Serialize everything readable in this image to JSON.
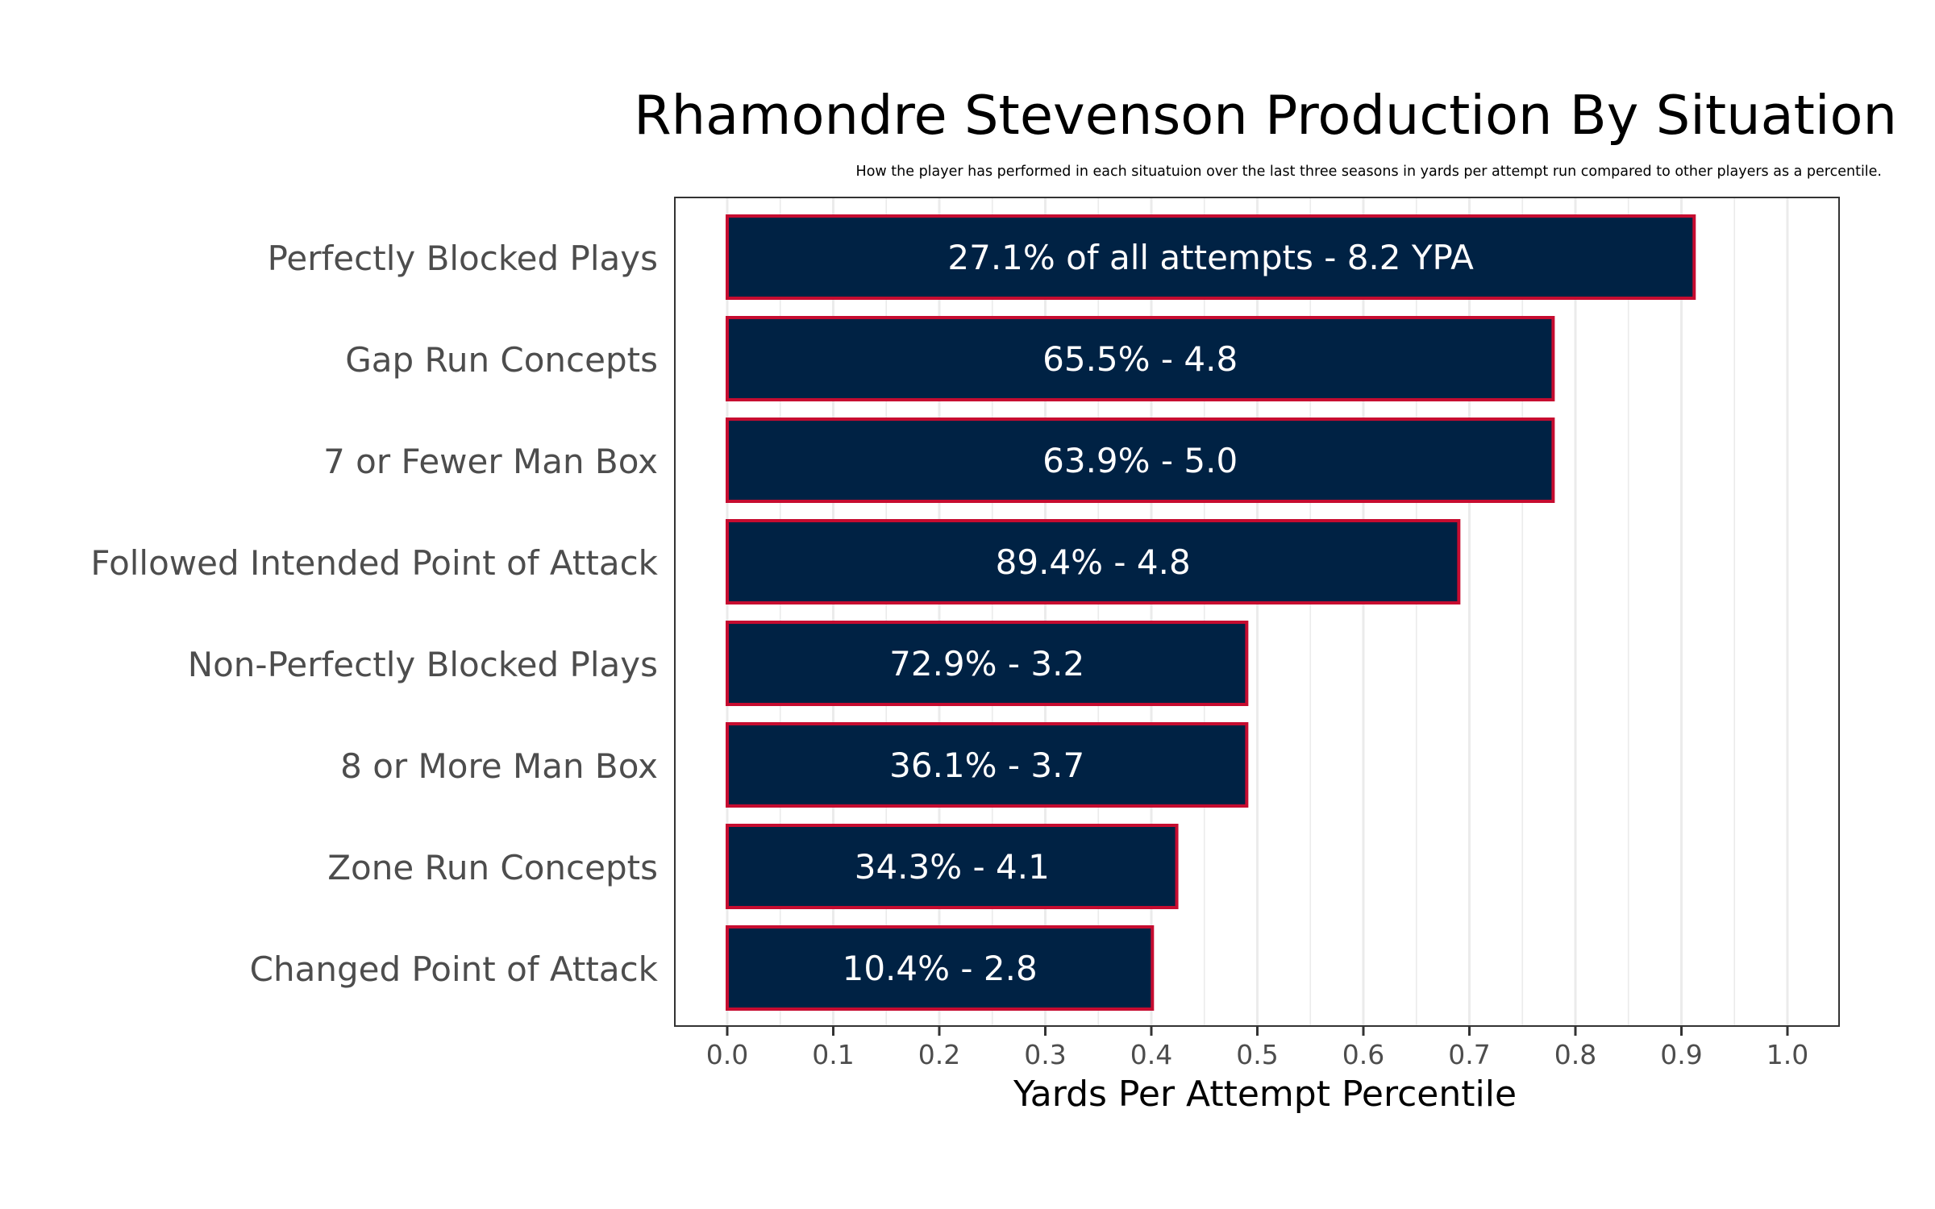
{
  "chart_data": {
    "type": "bar",
    "orientation": "horizontal",
    "title": "Rhamondre Stevenson Production By Situation",
    "subtitle": "How the player has performed in each situatuion over the last three seasons in yards per attempt run compared to other players as a percentile.",
    "xlabel": "Yards Per Attempt Percentile",
    "ylabel": "",
    "xlim": [
      -0.05,
      1.05
    ],
    "x_ticks": [
      "0.0",
      "0.1",
      "0.2",
      "0.3",
      "0.4",
      "0.5",
      "0.6",
      "0.7",
      "0.8",
      "0.9",
      "1.0"
    ],
    "grid": "vertical major and minor",
    "legend": "none",
    "categories": [
      "Perfectly Blocked Plays",
      "Gap Run Concepts",
      "7 or Fewer Man Box",
      "Followed Intended Point of Attack",
      "Non-Perfectly Blocked Plays",
      "8 or More Man Box",
      "Zone Run Concepts",
      "Changed Point of Attack"
    ],
    "values": [
      0.912,
      0.779,
      0.779,
      0.69,
      0.49,
      0.49,
      0.424,
      0.401
    ],
    "data_labels": [
      "27.1% of all attempts - 8.2 YPA",
      "65.5% - 4.8",
      "63.9% - 5.0",
      "89.4% - 4.8",
      "72.9% - 3.2",
      "36.1% - 3.7",
      "34.3% - 4.1",
      "10.4% - 2.8"
    ],
    "colors": {
      "bar_fill": "#002244",
      "bar_outline": "#C60C30",
      "bar_label": "#FFFFFF",
      "grid": "#EBEBEB",
      "panel_border": "#333333",
      "axis_text": "#4D4D4D"
    }
  }
}
